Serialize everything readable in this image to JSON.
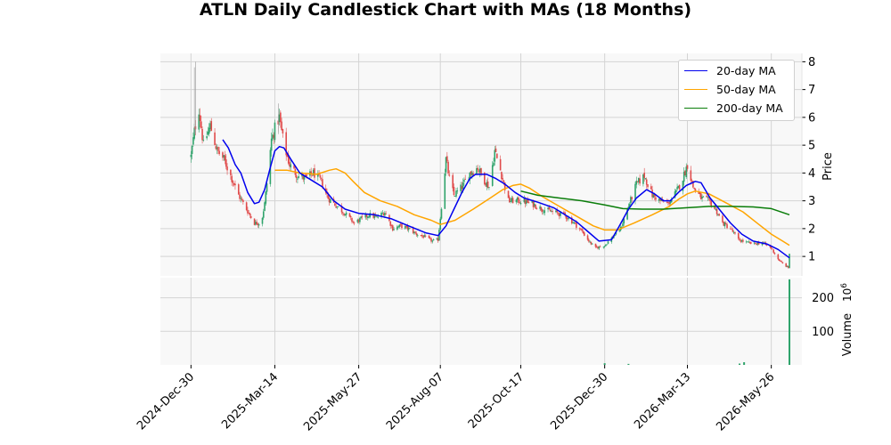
{
  "title": "ATLN Daily Candlestick Chart with MAs (18 Months)",
  "colors": {
    "up": "#2fa36b",
    "down": "#e04b4b",
    "ma20": "#0000ee",
    "ma50": "#ffa500",
    "ma200": "#0a7d0a",
    "grid": "#d4d4d4",
    "panel_bg": "#f8f8f8"
  },
  "legend": {
    "ma20": "20-day MA",
    "ma50": "50-day MA",
    "ma200": "200-day MA",
    "placement": "top-right"
  },
  "chart_data": {
    "type": "candlestick",
    "x_tick_labels": [
      "2024-Dec-30",
      "2025-Mar-14",
      "2025-May-27",
      "2025-Aug-07",
      "2025-Oct-17",
      "2025-Dec-30",
      "2026-Mar-13",
      "2026-May-26"
    ],
    "x_tick_dates": [
      "2024-12-30",
      "2025-03-14",
      "2025-05-27",
      "2025-08-07",
      "2025-10-17",
      "2025-12-30",
      "2026-03-13",
      "2026-05-26"
    ],
    "x_range": [
      "2024-12-03",
      "2026-06-22"
    ],
    "price_panel": {
      "ylabel": "Price",
      "ylim": [
        0.3,
        8.3
      ],
      "yticks": [
        1,
        2,
        3,
        4,
        5,
        6,
        7,
        8
      ],
      "grid": true,
      "close_anchors": [
        [
          "2024-12-30",
          4.6
        ],
        [
          "2025-01-02",
          5.5
        ],
        [
          "2025-01-06",
          6.3
        ],
        [
          "2025-01-10",
          5.0
        ],
        [
          "2025-01-16",
          5.7
        ],
        [
          "2025-01-22",
          4.8
        ],
        [
          "2025-01-28",
          4.5
        ],
        [
          "2025-02-03",
          3.9
        ],
        [
          "2025-02-10",
          3.2
        ],
        [
          "2025-02-17",
          2.7
        ],
        [
          "2025-02-24",
          2.2
        ],
        [
          "2025-03-02",
          2.2
        ],
        [
          "2025-03-05",
          2.9
        ],
        [
          "2025-03-08",
          4.0
        ],
        [
          "2025-03-11",
          5.2
        ],
        [
          "2025-03-14",
          5.6
        ],
        [
          "2025-03-18",
          6.0
        ],
        [
          "2025-03-22",
          5.0
        ],
        [
          "2025-03-27",
          4.3
        ],
        [
          "2025-04-03",
          3.9
        ],
        [
          "2025-04-10",
          3.8
        ],
        [
          "2025-04-17",
          4.0
        ],
        [
          "2025-04-24",
          3.7
        ],
        [
          "2025-04-30",
          3.1
        ],
        [
          "2025-05-08",
          2.8
        ],
        [
          "2025-05-16",
          2.5
        ],
        [
          "2025-05-23",
          2.2
        ],
        [
          "2025-05-27",
          2.3
        ],
        [
          "2025-06-05",
          2.5
        ],
        [
          "2025-06-12",
          2.4
        ],
        [
          "2025-06-19",
          2.6
        ],
        [
          "2025-06-26",
          2.0
        ],
        [
          "2025-07-03",
          2.1
        ],
        [
          "2025-07-10",
          2.0
        ],
        [
          "2025-07-17",
          1.8
        ],
        [
          "2025-07-24",
          1.7
        ],
        [
          "2025-07-31",
          1.55
        ],
        [
          "2025-08-05",
          1.6
        ],
        [
          "2025-08-08",
          2.8
        ],
        [
          "2025-08-12",
          4.5
        ],
        [
          "2025-08-15",
          3.8
        ],
        [
          "2025-08-19",
          3.2
        ],
        [
          "2025-08-26",
          3.5
        ],
        [
          "2025-09-02",
          4.0
        ],
        [
          "2025-09-09",
          4.2
        ],
        [
          "2025-09-14",
          3.8
        ],
        [
          "2025-09-19",
          3.5
        ],
        [
          "2025-09-24",
          4.8
        ],
        [
          "2025-09-29",
          4.1
        ],
        [
          "2025-10-06",
          3.0
        ],
        [
          "2025-10-17",
          3.0
        ],
        [
          "2025-10-27",
          2.9
        ],
        [
          "2025-11-05",
          2.7
        ],
        [
          "2025-11-14",
          2.6
        ],
        [
          "2025-11-24",
          2.5
        ],
        [
          "2025-12-03",
          2.2
        ],
        [
          "2025-12-10",
          1.9
        ],
        [
          "2025-12-17",
          1.5
        ],
        [
          "2025-12-22",
          1.3
        ],
        [
          "2025-12-30",
          1.4
        ],
        [
          "2026-01-06",
          1.7
        ],
        [
          "2026-01-13",
          2.0
        ],
        [
          "2026-01-20",
          2.8
        ],
        [
          "2026-01-27",
          3.6
        ],
        [
          "2026-02-03",
          3.9
        ],
        [
          "2026-02-10",
          3.2
        ],
        [
          "2026-02-17",
          3.0
        ],
        [
          "2026-02-24",
          2.9
        ],
        [
          "2026-03-03",
          3.3
        ],
        [
          "2026-03-08",
          3.7
        ],
        [
          "2026-03-13",
          4.3
        ],
        [
          "2026-03-18",
          3.5
        ],
        [
          "2026-03-25",
          3.1
        ],
        [
          "2026-04-01",
          3.0
        ],
        [
          "2026-04-08",
          2.6
        ],
        [
          "2026-04-13",
          2.2
        ],
        [
          "2026-04-20",
          2.0
        ],
        [
          "2026-04-27",
          1.6
        ],
        [
          "2026-05-04",
          1.5
        ],
        [
          "2026-05-11",
          1.45
        ],
        [
          "2026-05-18",
          1.5
        ],
        [
          "2026-05-26",
          1.3
        ],
        [
          "2026-06-01",
          0.9
        ],
        [
          "2026-06-06",
          0.7
        ],
        [
          "2026-06-10",
          0.6
        ],
        [
          "2026-06-11",
          1.1
        ]
      ],
      "ma20": [
        [
          "2025-01-27",
          5.2
        ],
        [
          "2025-02-01",
          4.9
        ],
        [
          "2025-02-07",
          4.3
        ],
        [
          "2025-02-12",
          4.0
        ],
        [
          "2025-02-18",
          3.3
        ],
        [
          "2025-02-24",
          2.9
        ],
        [
          "2025-02-28",
          2.95
        ],
        [
          "2025-03-05",
          3.4
        ],
        [
          "2025-03-10",
          4.2
        ],
        [
          "2025-03-14",
          4.8
        ],
        [
          "2025-03-18",
          4.95
        ],
        [
          "2025-03-22",
          4.9
        ],
        [
          "2025-03-28",
          4.5
        ],
        [
          "2025-04-05",
          4.0
        ],
        [
          "2025-04-15",
          3.75
        ],
        [
          "2025-04-25",
          3.5
        ],
        [
          "2025-05-05",
          3.0
        ],
        [
          "2025-05-15",
          2.7
        ],
        [
          "2025-05-27",
          2.55
        ],
        [
          "2025-06-10",
          2.5
        ],
        [
          "2025-06-25",
          2.35
        ],
        [
          "2025-07-10",
          2.1
        ],
        [
          "2025-07-25",
          1.85
        ],
        [
          "2025-08-05",
          1.75
        ],
        [
          "2025-08-12",
          2.1
        ],
        [
          "2025-08-19",
          2.7
        ],
        [
          "2025-08-26",
          3.3
        ],
        [
          "2025-09-02",
          3.8
        ],
        [
          "2025-09-07",
          3.95
        ],
        [
          "2025-09-17",
          3.95
        ],
        [
          "2025-09-25",
          3.8
        ],
        [
          "2025-10-03",
          3.6
        ],
        [
          "2025-10-12",
          3.3
        ],
        [
          "2025-10-20",
          3.1
        ],
        [
          "2025-11-01",
          2.95
        ],
        [
          "2025-11-15",
          2.75
        ],
        [
          "2025-11-25",
          2.5
        ],
        [
          "2025-12-05",
          2.25
        ],
        [
          "2025-12-15",
          1.9
        ],
        [
          "2025-12-25",
          1.55
        ],
        [
          "2026-01-05",
          1.6
        ],
        [
          "2026-01-12",
          2.1
        ],
        [
          "2026-01-20",
          2.7
        ],
        [
          "2026-01-27",
          3.1
        ],
        [
          "2026-02-05",
          3.4
        ],
        [
          "2026-02-12",
          3.25
        ],
        [
          "2026-02-20",
          3.0
        ],
        [
          "2026-02-26",
          3.0
        ],
        [
          "2026-03-05",
          3.3
        ],
        [
          "2026-03-12",
          3.55
        ],
        [
          "2026-03-20",
          3.7
        ],
        [
          "2026-03-25",
          3.65
        ],
        [
          "2026-04-02",
          3.1
        ],
        [
          "2026-04-12",
          2.6
        ],
        [
          "2026-04-20",
          2.2
        ],
        [
          "2026-04-30",
          1.8
        ],
        [
          "2026-05-10",
          1.55
        ],
        [
          "2026-05-22",
          1.45
        ],
        [
          "2026-06-01",
          1.25
        ],
        [
          "2026-06-11",
          0.95
        ]
      ],
      "ma50": [
        [
          "2025-03-14",
          4.1
        ],
        [
          "2025-03-25",
          4.1
        ],
        [
          "2025-04-05",
          4.0
        ],
        [
          "2025-04-20",
          3.95
        ],
        [
          "2025-05-01",
          4.1
        ],
        [
          "2025-05-07",
          4.15
        ],
        [
          "2025-05-15",
          4.0
        ],
        [
          "2025-05-22",
          3.7
        ],
        [
          "2025-06-01",
          3.3
        ],
        [
          "2025-06-15",
          3.0
        ],
        [
          "2025-06-30",
          2.8
        ],
        [
          "2025-07-15",
          2.5
        ],
        [
          "2025-07-30",
          2.3
        ],
        [
          "2025-08-07",
          2.15
        ],
        [
          "2025-08-20",
          2.3
        ],
        [
          "2025-09-05",
          2.7
        ],
        [
          "2025-09-20",
          3.1
        ],
        [
          "2025-10-01",
          3.4
        ],
        [
          "2025-10-10",
          3.55
        ],
        [
          "2025-10-17",
          3.6
        ],
        [
          "2025-10-25",
          3.45
        ],
        [
          "2025-11-05",
          3.15
        ],
        [
          "2025-11-20",
          2.8
        ],
        [
          "2025-12-05",
          2.45
        ],
        [
          "2025-12-20",
          2.1
        ],
        [
          "2025-12-30",
          1.95
        ],
        [
          "2026-01-10",
          1.95
        ],
        [
          "2026-01-25",
          2.2
        ],
        [
          "2026-02-10",
          2.5
        ],
        [
          "2026-02-25",
          2.8
        ],
        [
          "2026-03-05",
          3.05
        ],
        [
          "2026-03-13",
          3.25
        ],
        [
          "2026-03-20",
          3.35
        ],
        [
          "2026-04-01",
          3.25
        ],
        [
          "2026-04-15",
          2.95
        ],
        [
          "2026-05-01",
          2.6
        ],
        [
          "2026-05-15",
          2.15
        ],
        [
          "2026-05-26",
          1.8
        ],
        [
          "2026-06-05",
          1.55
        ],
        [
          "2026-06-11",
          1.4
        ]
      ],
      "ma200": [
        [
          "2025-10-17",
          3.35
        ],
        [
          "2025-11-01",
          3.2
        ],
        [
          "2025-11-20",
          3.1
        ],
        [
          "2025-12-10",
          3.0
        ],
        [
          "2025-12-30",
          2.85
        ],
        [
          "2026-01-15",
          2.72
        ],
        [
          "2026-02-01",
          2.7
        ],
        [
          "2026-02-20",
          2.7
        ],
        [
          "2026-03-13",
          2.75
        ],
        [
          "2026-04-01",
          2.8
        ],
        [
          "2026-04-20",
          2.8
        ],
        [
          "2026-05-10",
          2.78
        ],
        [
          "2026-05-26",
          2.72
        ],
        [
          "2026-06-11",
          2.5
        ]
      ]
    },
    "volume_panel": {
      "ylabel": "Volume",
      "exponent": "10^6",
      "ylim": [
        0,
        260
      ],
      "yticks": [
        100,
        200
      ],
      "grid": true,
      "bars": [
        [
          "2025-12-30",
          5
        ],
        [
          "2026-01-20",
          3
        ],
        [
          "2026-04-28",
          4
        ],
        [
          "2026-05-02",
          8
        ],
        [
          "2026-06-11",
          255
        ]
      ]
    }
  }
}
